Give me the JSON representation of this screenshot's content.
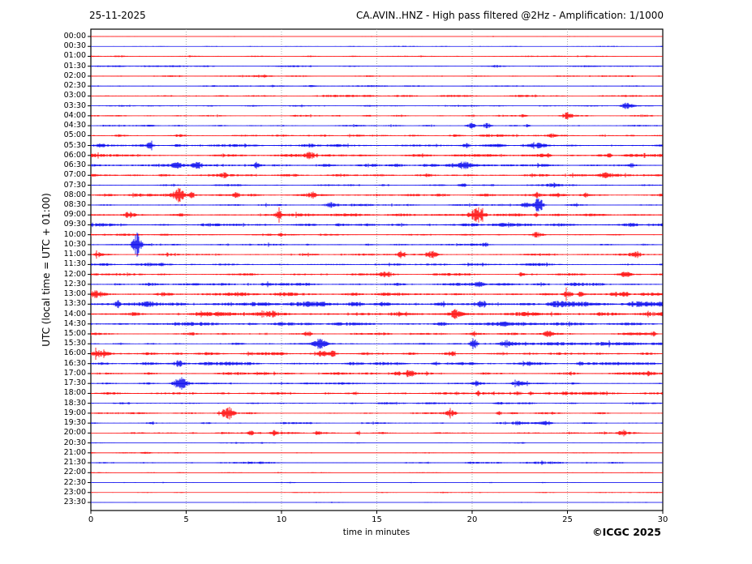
{
  "header": {
    "date": "25-11-2025",
    "title": "CA.AVIN..HNZ - High pass filtered @2Hz - Amplification: 1/1000"
  },
  "axes": {
    "ylabel": "UTC (local time = UTC + 01:00)",
    "xlabel": "time in minutes",
    "xticks": [
      "0",
      "5",
      "10",
      "15",
      "20",
      "25",
      "30"
    ]
  },
  "footer": {
    "copyright": "©ICGC 2025"
  },
  "chart_data": {
    "type": "line",
    "subtype": "helicorder-seismogram",
    "title": "CA.AVIN..HNZ - High pass filtered @2Hz - Amplification: 1/1000",
    "date": "25-11-2025",
    "xlabel": "time in minutes",
    "ylabel": "UTC (local time = UTC + 01:00)",
    "x_range_minutes": [
      0,
      30
    ],
    "minutes_per_line": 30,
    "grid_minutes": [
      5,
      10,
      15,
      20,
      25
    ],
    "palette": {
      "red": "#ff0000",
      "blue": "#0000ee",
      "grid": "#999999",
      "frame": "#000000"
    },
    "rows_note": "noise = background amplitude px; events = [minute, amplitude_px, halfwidth_min]",
    "rows": [
      {
        "time": "00:00",
        "color": "red",
        "noise": 0.35,
        "events": []
      },
      {
        "time": "00:30",
        "color": "blue",
        "noise": 0.5,
        "events": []
      },
      {
        "time": "01:00",
        "color": "red",
        "noise": 0.8,
        "events": []
      },
      {
        "time": "01:30",
        "color": "blue",
        "noise": 0.75,
        "events": []
      },
      {
        "time": "02:00",
        "color": "red",
        "noise": 0.85,
        "events": []
      },
      {
        "time": "02:30",
        "color": "blue",
        "noise": 0.9,
        "events": []
      },
      {
        "time": "03:00",
        "color": "red",
        "noise": 0.95,
        "events": []
      },
      {
        "time": "03:30",
        "color": "blue",
        "noise": 0.8,
        "events": [
          [
            28.1,
            4,
            0.3
          ]
        ]
      },
      {
        "time": "04:00",
        "color": "red",
        "noise": 0.85,
        "events": [
          [
            25.0,
            4,
            0.3
          ],
          [
            22.7,
            1.5,
            0.15
          ]
        ]
      },
      {
        "time": "04:30",
        "color": "blue",
        "noise": 0.85,
        "events": [
          [
            20.0,
            3,
            0.18
          ],
          [
            20.8,
            3,
            0.2
          ],
          [
            22.9,
            1.8,
            0.15
          ]
        ]
      },
      {
        "time": "05:00",
        "color": "red",
        "noise": 1.25,
        "events": [
          [
            24.2,
            1.8,
            0.2
          ]
        ]
      },
      {
        "time": "05:30",
        "color": "blue",
        "noise": 1.7,
        "events": [
          [
            0.5,
            2.5,
            0.2
          ],
          [
            3.1,
            2.5,
            0.15
          ],
          [
            19.7,
            2.5,
            0.2
          ],
          [
            23.5,
            2,
            0.15
          ]
        ]
      },
      {
        "time": "06:00",
        "color": "red",
        "noise": 1.45,
        "events": [
          [
            11.5,
            4.5,
            0.3
          ],
          [
            24.0,
            2.2,
            0.15
          ],
          [
            27.2,
            2.5,
            0.12
          ]
        ]
      },
      {
        "time": "06:30",
        "color": "blue",
        "noise": 1.55,
        "events": [
          [
            4.5,
            3.5,
            0.25
          ],
          [
            5.6,
            3.5,
            0.25
          ],
          [
            8.7,
            2.5,
            0.2
          ],
          [
            19.6,
            3.5,
            0.3
          ]
        ]
      },
      {
        "time": "07:00",
        "color": "red",
        "noise": 1.55,
        "events": [
          [
            7.0,
            2.5,
            0.2
          ],
          [
            27.0,
            3.2,
            0.35
          ]
        ]
      },
      {
        "time": "07:30",
        "color": "blue",
        "noise": 1.0,
        "events": [
          [
            19.5,
            2.2,
            0.2
          ],
          [
            24.3,
            2.2,
            0.25
          ]
        ]
      },
      {
        "time": "08:00",
        "color": "red",
        "noise": 1.35,
        "events": [
          [
            4.6,
            8,
            0.28
          ],
          [
            5.3,
            3,
            0.15
          ],
          [
            7.6,
            3.5,
            0.2
          ],
          [
            11.6,
            3.5,
            0.25
          ],
          [
            23.4,
            2.8,
            0.15
          ],
          [
            25.9,
            2.2,
            0.18
          ]
        ]
      },
      {
        "time": "08:30",
        "color": "blue",
        "noise": 1.0,
        "events": [
          [
            12.6,
            3.2,
            0.3
          ],
          [
            22.8,
            2.8,
            0.2
          ],
          [
            23.5,
            10,
            0.22
          ]
        ]
      },
      {
        "time": "09:00",
        "color": "red",
        "noise": 1.45,
        "events": [
          [
            2.0,
            3.5,
            0.25
          ],
          [
            9.9,
            4,
            0.2
          ],
          [
            20.3,
            9,
            0.32
          ],
          [
            23.4,
            2.2,
            0.12
          ]
        ]
      },
      {
        "time": "09:30",
        "color": "blue",
        "noise": 1.6,
        "events": []
      },
      {
        "time": "10:00",
        "color": "red",
        "noise": 0.9,
        "events": [
          [
            10.0,
            1.8,
            0.1
          ],
          [
            23.4,
            3.2,
            0.3
          ]
        ]
      },
      {
        "time": "10:30",
        "color": "blue",
        "noise": 1.0,
        "events": [
          [
            2.4,
            15,
            0.22
          ],
          [
            20.7,
            2.2,
            0.15
          ]
        ]
      },
      {
        "time": "11:00",
        "color": "red",
        "noise": 1.0,
        "events": [
          [
            0.4,
            2.5,
            0.2
          ],
          [
            16.3,
            4,
            0.22
          ],
          [
            17.9,
            3.5,
            0.3
          ],
          [
            28.6,
            3.5,
            0.25
          ]
        ]
      },
      {
        "time": "11:30",
        "color": "blue",
        "noise": 1.4,
        "events": []
      },
      {
        "time": "12:00",
        "color": "red",
        "noise": 1.25,
        "events": [
          [
            15.5,
            3,
            0.3
          ],
          [
            22.6,
            2.2,
            0.2
          ],
          [
            28.0,
            3,
            0.25
          ]
        ]
      },
      {
        "time": "12:30",
        "color": "blue",
        "noise": 1.55,
        "events": [
          [
            9.3,
            2.8,
            0.25
          ],
          [
            20.4,
            2.5,
            0.3
          ]
        ]
      },
      {
        "time": "13:00",
        "color": "red",
        "noise": 2.0,
        "events": [
          [
            0.3,
            2.8,
            0.3
          ],
          [
            25.0,
            3.5,
            0.2
          ],
          [
            25.7,
            2.8,
            0.15
          ],
          [
            28.0,
            3,
            0.2
          ]
        ]
      },
      {
        "time": "13:30",
        "color": "blue",
        "noise": 2.55,
        "events": [
          [
            1.4,
            5,
            0.12
          ],
          [
            20.5,
            4.5,
            0.25
          ],
          [
            24.2,
            2.8,
            0.2
          ]
        ]
      },
      {
        "time": "14:00",
        "color": "red",
        "noise": 2.35,
        "events": [
          [
            9.5,
            3,
            0.15
          ],
          [
            19.1,
            2.8,
            0.2
          ]
        ]
      },
      {
        "time": "14:30",
        "color": "blue",
        "noise": 1.85,
        "events": []
      },
      {
        "time": "15:00",
        "color": "red",
        "noise": 1.25,
        "events": [
          [
            11.4,
            2.8,
            0.2
          ],
          [
            20.1,
            2.5,
            0.1
          ],
          [
            24.0,
            3,
            0.25
          ],
          [
            29.5,
            2.8,
            0.2
          ]
        ]
      },
      {
        "time": "15:30",
        "color": "blue",
        "noise": 1.1,
        "events": [
          [
            12.0,
            9,
            0.28
          ],
          [
            20.1,
            7,
            0.2
          ],
          [
            21.8,
            3.5,
            0.3
          ],
          [
            26.6,
            1.6,
            3.2
          ]
        ]
      },
      {
        "time": "16:00",
        "color": "red",
        "noise": 1.5,
        "events": [
          [
            0.5,
            4,
            0.5
          ],
          [
            12.2,
            3.5,
            0.3
          ],
          [
            12.7,
            3,
            0.2
          ],
          [
            18.9,
            2.5,
            0.2
          ]
        ]
      },
      {
        "time": "16:30",
        "color": "blue",
        "noise": 1.65,
        "events": [
          [
            4.6,
            2.8,
            0.2
          ],
          [
            18.1,
            2.2,
            0.15
          ],
          [
            25.7,
            2,
            0.15
          ]
        ]
      },
      {
        "time": "17:00",
        "color": "red",
        "noise": 1.4,
        "events": [
          [
            16.1,
            2.8,
            0.15
          ],
          [
            16.7,
            4.5,
            0.25
          ],
          [
            29.3,
            2.2,
            0.2
          ]
        ]
      },
      {
        "time": "17:30",
        "color": "blue",
        "noise": 1.05,
        "events": [
          [
            4.7,
            8,
            0.35
          ],
          [
            20.2,
            2.8,
            0.2
          ],
          [
            22.5,
            2.8,
            0.35
          ]
        ]
      },
      {
        "time": "18:00",
        "color": "red",
        "noise": 1.25,
        "events": [
          [
            20.3,
            3.5,
            0.08
          ],
          [
            22.4,
            2.2,
            0.2
          ],
          [
            23.1,
            2.2,
            0.15
          ],
          [
            24.9,
            2.2,
            0.2
          ]
        ]
      },
      {
        "time": "18:30",
        "color": "blue",
        "noise": 1.05,
        "events": []
      },
      {
        "time": "19:00",
        "color": "red",
        "noise": 1.05,
        "events": [
          [
            7.2,
            9,
            0.3
          ],
          [
            18.9,
            3.5,
            0.3
          ],
          [
            21.4,
            4,
            0.07
          ]
        ]
      },
      {
        "time": "19:30",
        "color": "blue",
        "noise": 0.95,
        "events": [
          [
            3.2,
            1.5,
            0.1
          ],
          [
            22.4,
            2.2,
            0.35
          ],
          [
            23.9,
            2.2,
            0.3
          ]
        ]
      },
      {
        "time": "20:00",
        "color": "red",
        "noise": 0.95,
        "events": [
          [
            8.4,
            2.2,
            0.15
          ],
          [
            9.6,
            2.8,
            0.15
          ],
          [
            11.9,
            2.8,
            0.15
          ],
          [
            14.0,
            2.2,
            0.1
          ],
          [
            27.9,
            2.5,
            0.25
          ]
        ]
      },
      {
        "time": "20:30",
        "color": "blue",
        "noise": 0.45,
        "events": [
          [
            22.6,
            1.2,
            0.2
          ]
        ]
      },
      {
        "time": "21:00",
        "color": "red",
        "noise": 0.5,
        "events": [
          [
            2.9,
            1.2,
            0.2
          ]
        ]
      },
      {
        "time": "21:30",
        "color": "blue",
        "noise": 1.05,
        "events": []
      },
      {
        "time": "22:00",
        "color": "red",
        "noise": 0.45,
        "events": []
      },
      {
        "time": "22:30",
        "color": "blue",
        "noise": 0.4,
        "events": []
      },
      {
        "time": "23:00",
        "color": "red",
        "noise": 0.5,
        "events": []
      },
      {
        "time": "23:30",
        "color": "blue",
        "noise": 0.4,
        "events": []
      }
    ]
  }
}
